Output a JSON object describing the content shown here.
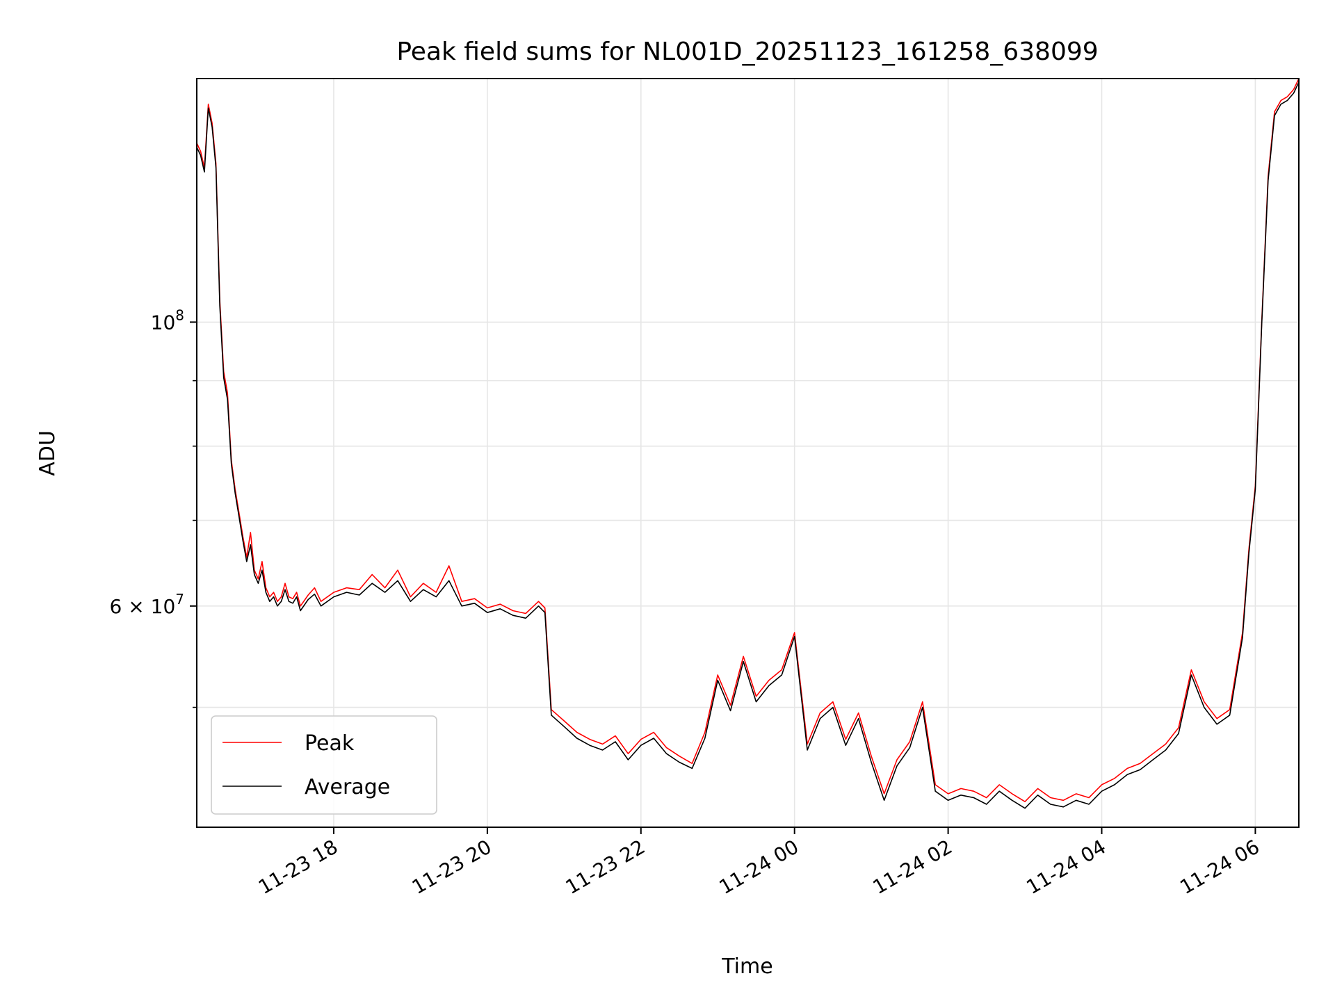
{
  "chart_data": {
    "type": "line",
    "title": "Peak field sums for NL001D_20251123_161258_638099",
    "xlabel": "Time",
    "ylabel": "ADU",
    "yscale": "log",
    "xlim": [
      "2025-11-23 16:13",
      "2025-11-24 06:34"
    ],
    "ylim": [
      40300000,
      155000000
    ],
    "x_ticks": [
      {
        "value": "2025-11-23 18:00",
        "label": "11-23 18"
      },
      {
        "value": "2025-11-23 20:00",
        "label": "11-23 20"
      },
      {
        "value": "2025-11-23 22:00",
        "label": "11-23 22"
      },
      {
        "value": "2025-11-24 00:00",
        "label": "11-24 00"
      },
      {
        "value": "2025-11-24 02:00",
        "label": "11-24 02"
      },
      {
        "value": "2025-11-24 04:00",
        "label": "11-24 04"
      },
      {
        "value": "2025-11-24 06:00",
        "label": "11-24 06"
      }
    ],
    "y_major_ticks": [
      {
        "value": 100000000,
        "label_base": "10",
        "label_exp": "8",
        "label_prefix": ""
      },
      {
        "value": 60000000,
        "label_base": "10",
        "label_exp": "7",
        "label_prefix": "6 × "
      }
    ],
    "y_minor_grid": [
      40000000,
      50000000,
      70000000,
      80000000,
      90000000
    ],
    "grid": true,
    "legend_position": "lower-left",
    "series": [
      {
        "name": "Peak",
        "color": "#ff0000",
        "x": [
          "2025-11-23 16:13",
          "2025-11-23 16:16",
          "2025-11-23 16:19",
          "2025-11-23 16:22",
          "2025-11-23 16:25",
          "2025-11-23 16:28",
          "2025-11-23 16:31",
          "2025-11-23 16:34",
          "2025-11-23 16:37",
          "2025-11-23 16:40",
          "2025-11-23 16:43",
          "2025-11-23 16:46",
          "2025-11-23 16:49",
          "2025-11-23 16:52",
          "2025-11-23 16:55",
          "2025-11-23 16:58",
          "2025-11-23 17:01",
          "2025-11-23 17:04",
          "2025-11-23 17:07",
          "2025-11-23 17:10",
          "2025-11-23 17:13",
          "2025-11-23 17:16",
          "2025-11-23 17:19",
          "2025-11-23 17:22",
          "2025-11-23 17:25",
          "2025-11-23 17:28",
          "2025-11-23 17:31",
          "2025-11-23 17:34",
          "2025-11-23 17:40",
          "2025-11-23 17:45",
          "2025-11-23 17:50",
          "2025-11-23 18:00",
          "2025-11-23 18:10",
          "2025-11-23 18:20",
          "2025-11-23 18:30",
          "2025-11-23 18:40",
          "2025-11-23 18:50",
          "2025-11-23 19:00",
          "2025-11-23 19:10",
          "2025-11-23 19:20",
          "2025-11-23 19:30",
          "2025-11-23 19:40",
          "2025-11-23 19:50",
          "2025-11-23 20:00",
          "2025-11-23 20:10",
          "2025-11-23 20:20",
          "2025-11-23 20:30",
          "2025-11-23 20:40",
          "2025-11-23 20:45",
          "2025-11-23 20:50",
          "2025-11-23 21:00",
          "2025-11-23 21:10",
          "2025-11-23 21:20",
          "2025-11-23 21:30",
          "2025-11-23 21:40",
          "2025-11-23 21:50",
          "2025-11-23 22:00",
          "2025-11-23 22:10",
          "2025-11-23 22:20",
          "2025-11-23 22:30",
          "2025-11-23 22:40",
          "2025-11-23 22:50",
          "2025-11-23 23:00",
          "2025-11-23 23:10",
          "2025-11-23 23:20",
          "2025-11-23 23:30",
          "2025-11-23 23:40",
          "2025-11-23 23:50",
          "2025-11-24 00:00",
          "2025-11-24 00:10",
          "2025-11-24 00:20",
          "2025-11-24 00:30",
          "2025-11-24 00:40",
          "2025-11-24 00:50",
          "2025-11-24 01:00",
          "2025-11-24 01:10",
          "2025-11-24 01:20",
          "2025-11-24 01:30",
          "2025-11-24 01:40",
          "2025-11-24 01:50",
          "2025-11-24 02:00",
          "2025-11-24 02:10",
          "2025-11-24 02:20",
          "2025-11-24 02:30",
          "2025-11-24 02:40",
          "2025-11-24 02:50",
          "2025-11-24 03:00",
          "2025-11-24 03:10",
          "2025-11-24 03:20",
          "2025-11-24 03:30",
          "2025-11-24 03:40",
          "2025-11-24 03:50",
          "2025-11-24 04:00",
          "2025-11-24 04:10",
          "2025-11-24 04:20",
          "2025-11-24 04:30",
          "2025-11-24 04:40",
          "2025-11-24 04:50",
          "2025-11-24 05:00",
          "2025-11-24 05:10",
          "2025-11-24 05:20",
          "2025-11-24 05:30",
          "2025-11-24 05:40",
          "2025-11-24 05:50",
          "2025-11-24 05:55",
          "2025-11-24 06:00",
          "2025-11-24 06:05",
          "2025-11-24 06:10",
          "2025-11-24 06:15",
          "2025-11-24 06:20",
          "2025-11-24 06:25",
          "2025-11-24 06:30",
          "2025-11-24 06:34"
        ],
        "values": [
          138000000,
          136000000,
          132000000,
          148000000,
          143000000,
          133000000,
          104000000,
          91500000,
          88000000,
          78000000,
          74000000,
          71000000,
          68000000,
          65500000,
          68500000,
          64000000,
          63000000,
          65000000,
          62000000,
          61000000,
          61500000,
          60500000,
          61000000,
          62500000,
          61000000,
          60800000,
          61500000,
          60000000,
          61200000,
          62000000,
          60500000,
          61500000,
          62000000,
          61800000,
          63500000,
          62000000,
          64000000,
          61000000,
          62500000,
          61500000,
          64500000,
          60500000,
          60800000,
          59800000,
          60200000,
          59500000,
          59200000,
          60500000,
          59800000,
          49800000,
          48800000,
          47800000,
          47200000,
          46800000,
          47500000,
          46000000,
          47200000,
          47800000,
          46500000,
          45800000,
          45200000,
          47800000,
          53000000,
          50200000,
          54800000,
          51000000,
          52500000,
          53500000,
          57200000,
          46800000,
          49500000,
          50500000,
          47200000,
          49500000,
          45800000,
          42800000,
          45500000,
          47000000,
          50500000,
          43500000,
          42800000,
          43200000,
          43000000,
          42500000,
          43500000,
          42800000,
          42200000,
          43200000,
          42500000,
          42300000,
          42800000,
          42500000,
          43500000,
          44000000,
          44800000,
          45200000,
          46000000,
          46800000,
          48200000,
          53500000,
          50500000,
          49000000,
          49800000,
          57200000,
          66500000,
          74500000,
          100000000,
          130000000,
          146000000,
          149000000,
          150000000,
          152000000,
          155000000
        ]
      },
      {
        "name": "Average",
        "color": "#000000",
        "x": [
          "2025-11-23 16:13",
          "2025-11-23 16:16",
          "2025-11-23 16:19",
          "2025-11-23 16:22",
          "2025-11-23 16:25",
          "2025-11-23 16:28",
          "2025-11-23 16:31",
          "2025-11-23 16:34",
          "2025-11-23 16:37",
          "2025-11-23 16:40",
          "2025-11-23 16:43",
          "2025-11-23 16:46",
          "2025-11-23 16:49",
          "2025-11-23 16:52",
          "2025-11-23 16:55",
          "2025-11-23 16:58",
          "2025-11-23 17:01",
          "2025-11-23 17:04",
          "2025-11-23 17:07",
          "2025-11-23 17:10",
          "2025-11-23 17:13",
          "2025-11-23 17:16",
          "2025-11-23 17:19",
          "2025-11-23 17:22",
          "2025-11-23 17:25",
          "2025-11-23 17:28",
          "2025-11-23 17:31",
          "2025-11-23 17:34",
          "2025-11-23 17:40",
          "2025-11-23 17:45",
          "2025-11-23 17:50",
          "2025-11-23 18:00",
          "2025-11-23 18:10",
          "2025-11-23 18:20",
          "2025-11-23 18:30",
          "2025-11-23 18:40",
          "2025-11-23 18:50",
          "2025-11-23 19:00",
          "2025-11-23 19:10",
          "2025-11-23 19:20",
          "2025-11-23 19:30",
          "2025-11-23 19:40",
          "2025-11-23 19:50",
          "2025-11-23 20:00",
          "2025-11-23 20:10",
          "2025-11-23 20:20",
          "2025-11-23 20:30",
          "2025-11-23 20:40",
          "2025-11-23 20:45",
          "2025-11-23 20:50",
          "2025-11-23 21:00",
          "2025-11-23 21:10",
          "2025-11-23 21:20",
          "2025-11-23 21:30",
          "2025-11-23 21:40",
          "2025-11-23 21:50",
          "2025-11-23 22:00",
          "2025-11-23 22:10",
          "2025-11-23 22:20",
          "2025-11-23 22:30",
          "2025-11-23 22:40",
          "2025-11-23 22:50",
          "2025-11-23 23:00",
          "2025-11-23 23:10",
          "2025-11-23 23:20",
          "2025-11-23 23:30",
          "2025-11-23 23:40",
          "2025-11-23 23:50",
          "2025-11-24 00:00",
          "2025-11-24 00:10",
          "2025-11-24 00:20",
          "2025-11-24 00:30",
          "2025-11-24 00:40",
          "2025-11-24 00:50",
          "2025-11-24 01:00",
          "2025-11-24 01:10",
          "2025-11-24 01:20",
          "2025-11-24 01:30",
          "2025-11-24 01:40",
          "2025-11-24 01:50",
          "2025-11-24 02:00",
          "2025-11-24 02:10",
          "2025-11-24 02:20",
          "2025-11-24 02:30",
          "2025-11-24 02:40",
          "2025-11-24 02:50",
          "2025-11-24 03:00",
          "2025-11-24 03:10",
          "2025-11-24 03:20",
          "2025-11-24 03:30",
          "2025-11-24 03:40",
          "2025-11-24 03:50",
          "2025-11-24 04:00",
          "2025-11-24 04:10",
          "2025-11-24 04:20",
          "2025-11-24 04:30",
          "2025-11-24 04:40",
          "2025-11-24 04:50",
          "2025-11-24 05:00",
          "2025-11-24 05:10",
          "2025-11-24 05:20",
          "2025-11-24 05:30",
          "2025-11-24 05:40",
          "2025-11-24 05:50",
          "2025-11-24 05:55",
          "2025-11-24 06:00",
          "2025-11-24 06:05",
          "2025-11-24 06:10",
          "2025-11-24 06:15",
          "2025-11-24 06:20",
          "2025-11-24 06:25",
          "2025-11-24 06:30",
          "2025-11-24 06:34"
        ],
        "values": [
          137000000,
          135000000,
          131000000,
          147000000,
          142000000,
          132000000,
          103000000,
          90500000,
          87000000,
          77500000,
          73500000,
          70500000,
          67500000,
          65000000,
          67000000,
          63500000,
          62500000,
          64000000,
          61500000,
          60500000,
          61000000,
          60000000,
          60500000,
          61800000,
          60500000,
          60300000,
          61000000,
          59500000,
          60700000,
          61300000,
          60000000,
          61000000,
          61500000,
          61200000,
          62500000,
          61500000,
          62800000,
          60500000,
          61800000,
          61000000,
          62800000,
          60000000,
          60300000,
          59300000,
          59700000,
          59000000,
          58700000,
          60000000,
          59300000,
          49300000,
          48300000,
          47300000,
          46700000,
          46300000,
          47000000,
          45500000,
          46700000,
          47300000,
          46000000,
          45300000,
          44800000,
          47300000,
          52500000,
          49700000,
          54300000,
          50500000,
          52000000,
          53000000,
          56800000,
          46300000,
          49000000,
          50000000,
          46700000,
          49000000,
          45300000,
          42300000,
          45000000,
          46500000,
          50000000,
          43000000,
          42300000,
          42700000,
          42500000,
          42000000,
          43000000,
          42300000,
          41700000,
          42700000,
          42000000,
          41800000,
          42300000,
          42000000,
          43000000,
          43500000,
          44300000,
          44700000,
          45500000,
          46300000,
          47700000,
          53000000,
          50000000,
          48500000,
          49300000,
          56700000,
          66000000,
          74000000,
          99500000,
          129000000,
          145000000,
          148000000,
          149000000,
          151000000,
          154000000
        ]
      }
    ]
  }
}
